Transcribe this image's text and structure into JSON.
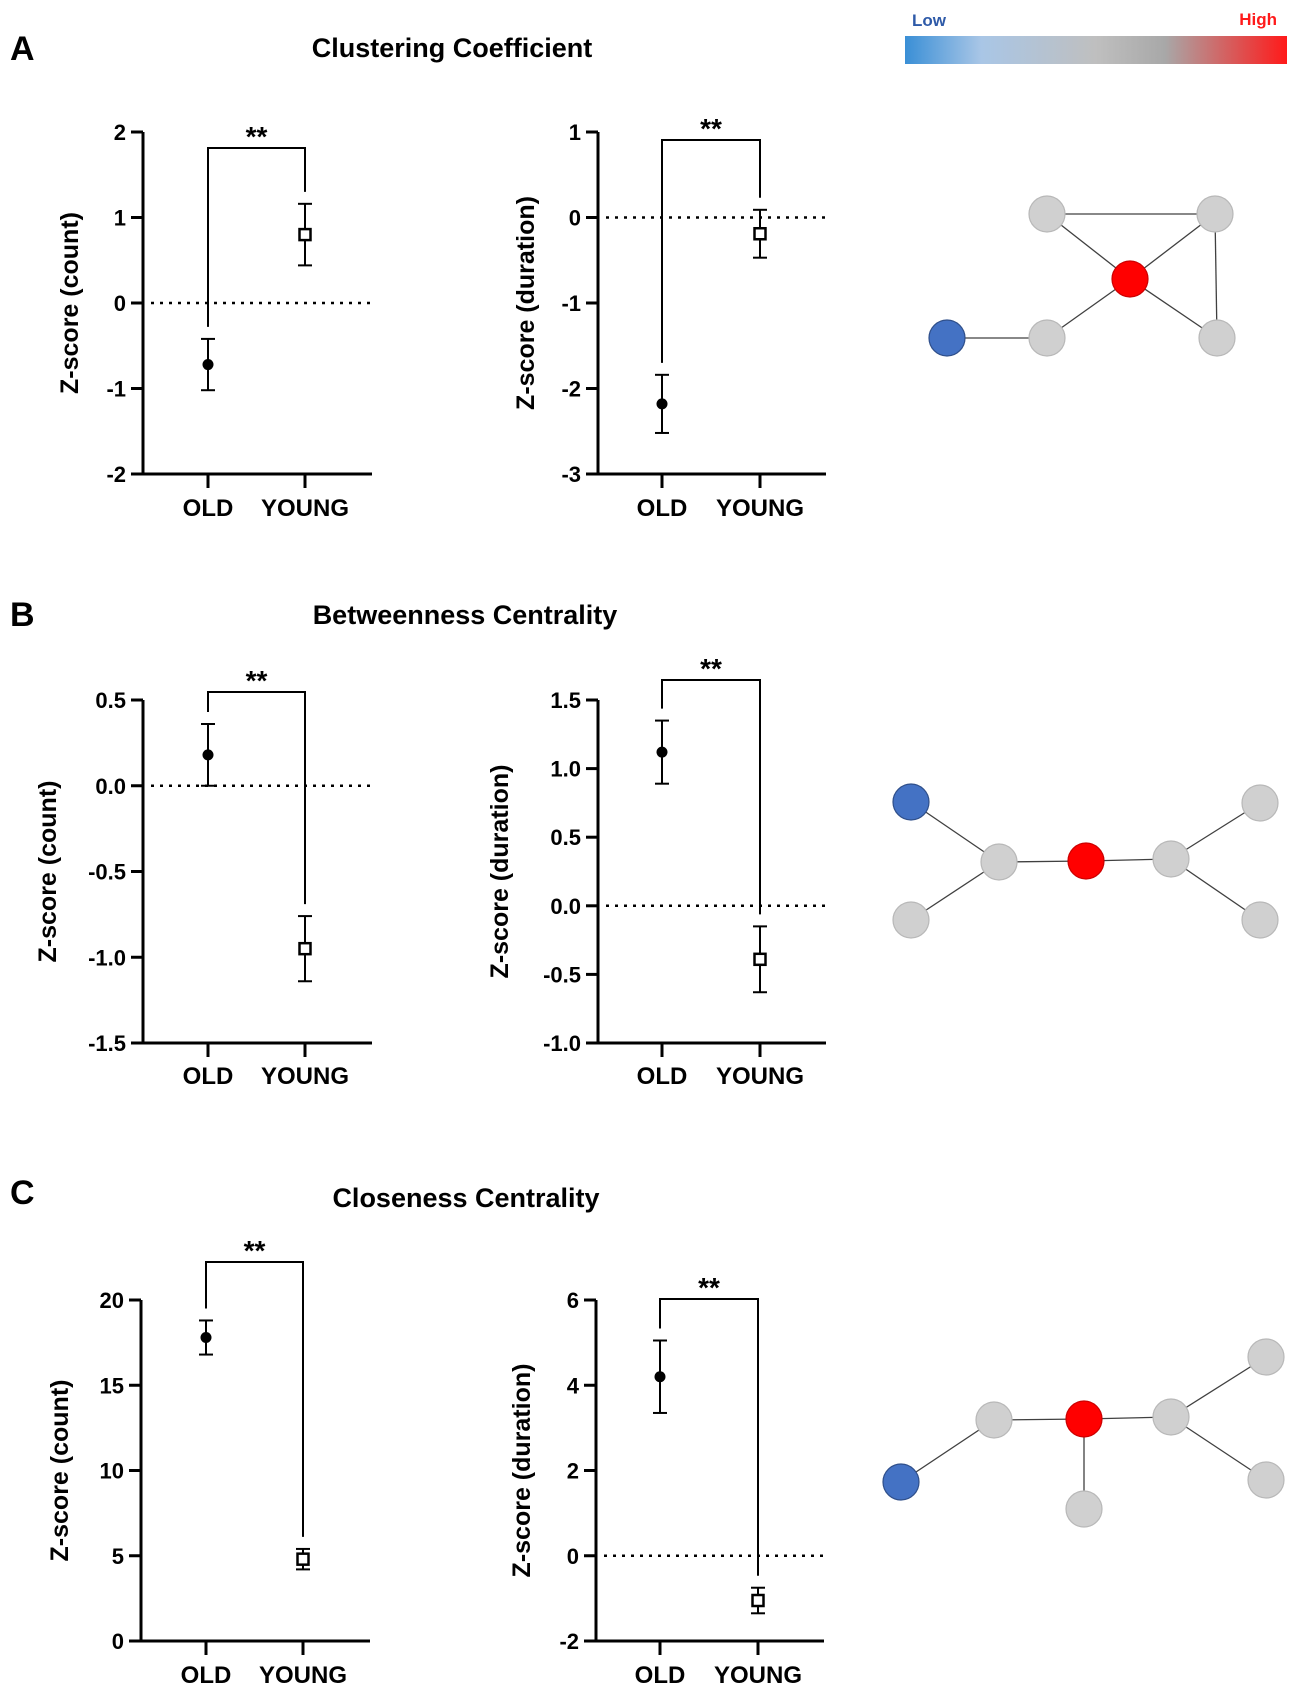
{
  "legend": {
    "low_label": "Low",
    "high_label": "High",
    "low_color": "#3a8fd6",
    "mid_color": "#bfbfbf",
    "high_color": "#ff1a1a"
  },
  "colors": {
    "node_low": "#4472c4",
    "node_high": "#ff0000",
    "node_mid": "#d0d0d0"
  },
  "chart_data": [
    {
      "type": "scatter",
      "panel": "A",
      "section_title": "Clustering Coefficient",
      "ylabel": "Z-score (count)",
      "categories": [
        "OLD",
        "YOUNG"
      ],
      "values": [
        -0.72,
        0.8
      ],
      "error": [
        0.3,
        0.36
      ],
      "markers": [
        "filled-circle",
        "open-square"
      ],
      "ylim": [
        -2,
        2
      ],
      "yticks": [
        -2,
        -1,
        0,
        1,
        2
      ],
      "tick_labels": [
        "-2",
        "-1",
        "0",
        "1",
        "2"
      ],
      "reference_line": 0,
      "significance": "**"
    },
    {
      "type": "scatter",
      "panel": "A",
      "ylabel": "Z-score (duration)",
      "categories": [
        "OLD",
        "YOUNG"
      ],
      "values": [
        -2.18,
        -0.19
      ],
      "error": [
        0.34,
        0.28
      ],
      "markers": [
        "filled-circle",
        "open-square"
      ],
      "ylim": [
        -3,
        1
      ],
      "yticks": [
        -3,
        -2,
        -1,
        0,
        1
      ],
      "tick_labels": [
        "-3",
        "-2",
        "-1",
        "0",
        "1"
      ],
      "reference_line": 0,
      "significance": "**"
    },
    {
      "type": "scatter",
      "panel": "B",
      "section_title": "Betweenness Centrality",
      "ylabel": "Z-score (count)",
      "categories": [
        "OLD",
        "YOUNG"
      ],
      "values": [
        0.18,
        -0.95
      ],
      "error": [
        0.18,
        0.19
      ],
      "markers": [
        "filled-circle",
        "open-square"
      ],
      "ylim": [
        -1.5,
        0.5
      ],
      "yticks": [
        -1.5,
        -1.0,
        -0.5,
        0.0,
        0.5
      ],
      "tick_labels": [
        "-1.5",
        "-1.0",
        "-0.5",
        "0.0",
        "0.5"
      ],
      "reference_line": 0,
      "significance": "**"
    },
    {
      "type": "scatter",
      "panel": "B",
      "ylabel": "Z-score (duration)",
      "categories": [
        "OLD",
        "YOUNG"
      ],
      "values": [
        1.12,
        -0.39
      ],
      "error": [
        0.23,
        0.24
      ],
      "markers": [
        "filled-circle",
        "open-square"
      ],
      "ylim": [
        -1.0,
        1.5
      ],
      "yticks": [
        -1.0,
        -0.5,
        0.0,
        0.5,
        1.0,
        1.5
      ],
      "tick_labels": [
        "-1.0",
        "-0.5",
        "0.0",
        "0.5",
        "1.0",
        "1.5"
      ],
      "reference_line": 0,
      "significance": "**"
    },
    {
      "type": "scatter",
      "panel": "C",
      "section_title": "Closeness Centrality",
      "ylabel": "Z-score (count)",
      "categories": [
        "OLD",
        "YOUNG"
      ],
      "values": [
        17.8,
        4.8
      ],
      "error": [
        1.0,
        0.6
      ],
      "markers": [
        "filled-circle",
        "open-square"
      ],
      "ylim": [
        0,
        20
      ],
      "yticks": [
        0,
        5,
        10,
        15,
        20
      ],
      "tick_labels": [
        "0",
        "5",
        "10",
        "15",
        "20"
      ],
      "reference_line": null,
      "significance": "**"
    },
    {
      "type": "scatter",
      "panel": "C",
      "ylabel": "Z-score (duration)",
      "categories": [
        "OLD",
        "YOUNG"
      ],
      "values": [
        4.2,
        -1.05
      ],
      "error": [
        0.85,
        0.3
      ],
      "markers": [
        "filled-circle",
        "open-square"
      ],
      "ylim": [
        -2,
        6
      ],
      "yticks": [
        -2,
        0,
        2,
        4,
        6
      ],
      "tick_labels": [
        "-2",
        "0",
        "2",
        "4",
        "6"
      ],
      "reference_line": 0,
      "significance": "**"
    }
  ],
  "networks": [
    {
      "nodes": [
        {
          "id": "n1",
          "level": "mid"
        },
        {
          "id": "n2",
          "level": "mid"
        },
        {
          "id": "n3",
          "level": "high"
        },
        {
          "id": "n4",
          "level": "low"
        },
        {
          "id": "n5",
          "level": "mid"
        },
        {
          "id": "n6",
          "level": "mid"
        }
      ],
      "edges": [
        [
          "n1",
          "n2"
        ],
        [
          "n1",
          "n3"
        ],
        [
          "n2",
          "n3"
        ],
        [
          "n2",
          "n6"
        ],
        [
          "n3",
          "n6"
        ],
        [
          "n3",
          "n5"
        ],
        [
          "n5",
          "n4"
        ]
      ]
    },
    {
      "nodes": [
        {
          "id": "n1",
          "level": "low"
        },
        {
          "id": "n2",
          "level": "mid"
        },
        {
          "id": "n3",
          "level": "mid"
        },
        {
          "id": "n4",
          "level": "high"
        },
        {
          "id": "n5",
          "level": "mid"
        },
        {
          "id": "n6",
          "level": "mid"
        },
        {
          "id": "n7",
          "level": "mid"
        }
      ],
      "edges": [
        [
          "n1",
          "n3"
        ],
        [
          "n2",
          "n3"
        ],
        [
          "n3",
          "n4"
        ],
        [
          "n4",
          "n5"
        ],
        [
          "n5",
          "n6"
        ],
        [
          "n5",
          "n7"
        ]
      ]
    },
    {
      "nodes": [
        {
          "id": "n1",
          "level": "low"
        },
        {
          "id": "n2",
          "level": "mid"
        },
        {
          "id": "n3",
          "level": "high"
        },
        {
          "id": "n4",
          "level": "mid"
        },
        {
          "id": "n5",
          "level": "mid"
        },
        {
          "id": "n6",
          "level": "mid"
        },
        {
          "id": "n7",
          "level": "mid"
        }
      ],
      "edges": [
        [
          "n1",
          "n2"
        ],
        [
          "n2",
          "n3"
        ],
        [
          "n3",
          "n4"
        ],
        [
          "n3",
          "n5"
        ],
        [
          "n5",
          "n6"
        ],
        [
          "n5",
          "n7"
        ]
      ]
    }
  ]
}
